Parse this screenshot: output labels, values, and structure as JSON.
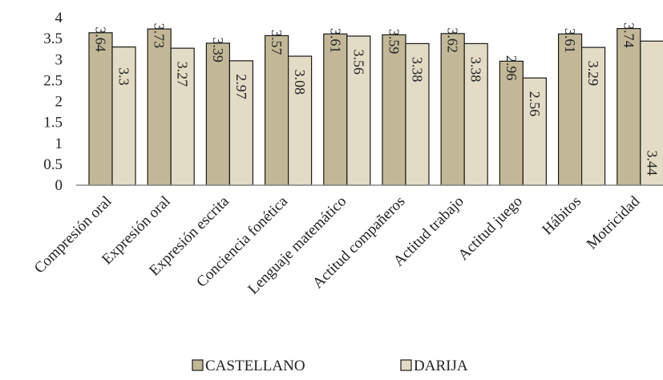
{
  "colors": {
    "castellano": "#c2b898",
    "darija": "#e2dcc6",
    "stroke": "#1a1a1a",
    "axis": "#8c8c8c"
  },
  "chart_data": {
    "type": "bar",
    "title": "",
    "xlabel": "",
    "ylabel": "",
    "ylim": [
      0,
      4
    ],
    "yticks": [
      "0",
      "0.5",
      "1",
      "1.5",
      "2",
      "2.5",
      "3",
      "3.5",
      "4"
    ],
    "grid": false,
    "legend_position": "bottom",
    "categories": [
      "Compresión oral",
      "Expresión oral",
      "Expresión escrita",
      "Conciencia fonética",
      "Lenguaje matemático",
      "Actitud compañeros",
      "Actitud trabajo",
      "Actitud juego",
      "Hábitos",
      "Motricidad"
    ],
    "series": [
      {
        "name": "CASTELLANO",
        "values": [
          3.64,
          3.73,
          3.39,
          3.57,
          3.61,
          3.59,
          3.62,
          2.96,
          3.61,
          3.74
        ]
      },
      {
        "name": "DARIJA",
        "values": [
          3.3,
          3.27,
          2.97,
          3.08,
          3.56,
          3.38,
          3.38,
          2.56,
          3.29,
          3.44
        ]
      }
    ]
  }
}
